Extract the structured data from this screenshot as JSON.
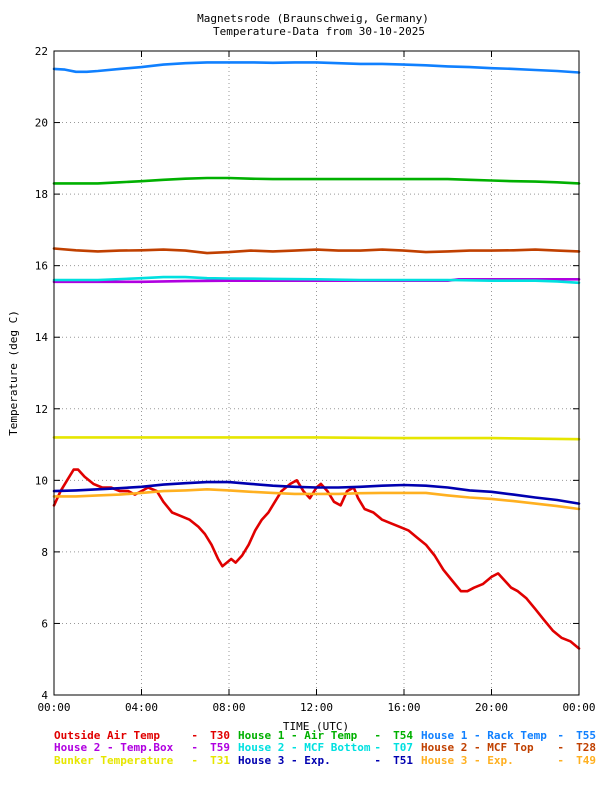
{
  "chart_data": {
    "type": "line",
    "title": "Magnetsrode (Braunschweig, Germany)",
    "subtitle": "Temperature-Data from 30-10-2025",
    "xlabel": "TIME (UTC)",
    "ylabel": "Temperature (deg C)",
    "xlim": [
      0,
      24
    ],
    "ylim": [
      4,
      22
    ],
    "x_ticks": [
      "00:00",
      "04:00",
      "08:00",
      "12:00",
      "16:00",
      "20:00",
      "00:00"
    ],
    "y_ticks": [
      4,
      6,
      8,
      10,
      12,
      14,
      16,
      18,
      20,
      22
    ],
    "grid": true,
    "legend": "bottom",
    "series": [
      {
        "name": "Outside Air Temp",
        "code": "T30",
        "color": "#e00000",
        "x": [
          0,
          0.3,
          0.6,
          0.9,
          1.1,
          1.4,
          1.8,
          2.2,
          2.6,
          3.0,
          3.4,
          3.7,
          4.0,
          4.3,
          4.7,
          5.0,
          5.4,
          5.8,
          6.2,
          6.6,
          6.9,
          7.2,
          7.5,
          7.7,
          7.9,
          8.1,
          8.3,
          8.6,
          8.9,
          9.2,
          9.5,
          9.8,
          10.1,
          10.4,
          10.8,
          11.1,
          11.4,
          11.7,
          12.0,
          12.2,
          12.5,
          12.8,
          13.1,
          13.4,
          13.7,
          13.9,
          14.2,
          14.6,
          15.0,
          15.4,
          15.8,
          16.2,
          16.6,
          17.0,
          17.4,
          17.8,
          18.2,
          18.6,
          18.9,
          19.2,
          19.6,
          20.0,
          20.3,
          20.6,
          20.9,
          21.2,
          21.6,
          22.0,
          22.4,
          22.8,
          23.2,
          23.6,
          24.0
        ],
        "values": [
          9.3,
          9.7,
          10.0,
          10.3,
          10.3,
          10.1,
          9.9,
          9.8,
          9.8,
          9.7,
          9.7,
          9.6,
          9.7,
          9.8,
          9.7,
          9.4,
          9.1,
          9.0,
          8.9,
          8.7,
          8.5,
          8.2,
          7.8,
          7.6,
          7.7,
          7.8,
          7.7,
          7.9,
          8.2,
          8.6,
          8.9,
          9.1,
          9.4,
          9.7,
          9.9,
          10.0,
          9.7,
          9.5,
          9.8,
          9.9,
          9.7,
          9.4,
          9.3,
          9.7,
          9.8,
          9.5,
          9.2,
          9.1,
          8.9,
          8.8,
          8.7,
          8.6,
          8.4,
          8.2,
          7.9,
          7.5,
          7.2,
          6.9,
          6.9,
          7.0,
          7.1,
          7.3,
          7.4,
          7.2,
          7.0,
          6.9,
          6.7,
          6.4,
          6.1,
          5.8,
          5.6,
          5.5,
          5.3
        ]
      },
      {
        "name": "House 2 - Temp.Box",
        "code": "T59",
        "color": "#b000e0",
        "x": [
          0,
          2,
          4,
          6,
          8,
          10,
          12,
          14,
          16,
          18,
          18.5,
          20,
          22,
          24
        ],
        "values": [
          15.55,
          15.55,
          15.55,
          15.57,
          15.58,
          15.58,
          15.58,
          15.58,
          15.58,
          15.58,
          15.62,
          15.62,
          15.62,
          15.62
        ]
      },
      {
        "name": "Bunker Temperature",
        "code": "T31",
        "color": "#e6e600",
        "x": [
          0,
          4,
          8,
          12,
          16,
          20,
          24
        ],
        "values": [
          11.2,
          11.2,
          11.2,
          11.2,
          11.18,
          11.18,
          11.15
        ]
      },
      {
        "name": "House 1 - Air  Temp",
        "code": "T54",
        "color": "#00b000",
        "x": [
          0,
          1,
          2,
          3,
          4,
          5,
          6,
          7,
          8,
          9,
          10,
          11,
          12,
          13,
          14,
          15,
          16,
          17,
          18,
          19,
          20,
          21,
          22,
          23,
          24
        ],
        "values": [
          18.3,
          18.3,
          18.3,
          18.33,
          18.36,
          18.4,
          18.43,
          18.45,
          18.45,
          18.43,
          18.42,
          18.42,
          18.42,
          18.42,
          18.42,
          18.42,
          18.42,
          18.42,
          18.42,
          18.4,
          18.38,
          18.36,
          18.35,
          18.33,
          18.3
        ]
      },
      {
        "name": "House 2 - MCF Bottom",
        "code": "T07",
        "color": "#00e0e0",
        "x": [
          0,
          2,
          4,
          5,
          6,
          7,
          8,
          10,
          12,
          14,
          16,
          18,
          20,
          22,
          23,
          24
        ],
        "values": [
          15.6,
          15.6,
          15.65,
          15.68,
          15.68,
          15.65,
          15.64,
          15.63,
          15.62,
          15.6,
          15.6,
          15.6,
          15.58,
          15.58,
          15.56,
          15.52
        ]
      },
      {
        "name": "House 3 - Exp.",
        "code": "T51",
        "color": "#0000b0",
        "x": [
          0,
          1,
          2,
          3,
          4,
          5,
          6,
          7,
          8,
          9,
          10,
          11,
          12,
          13,
          14,
          15,
          16,
          17,
          18,
          19,
          20,
          21,
          22,
          23,
          24
        ],
        "values": [
          9.7,
          9.72,
          9.75,
          9.78,
          9.82,
          9.88,
          9.92,
          9.95,
          9.95,
          9.9,
          9.85,
          9.82,
          9.8,
          9.8,
          9.82,
          9.85,
          9.87,
          9.85,
          9.8,
          9.72,
          9.68,
          9.6,
          9.52,
          9.45,
          9.35
        ]
      },
      {
        "name": "House 1 - Rack Temp",
        "code": "T55",
        "color": "#1080ff",
        "x": [
          0,
          0.5,
          1,
          1.5,
          2,
          3,
          4,
          5,
          6,
          7,
          8,
          9,
          10,
          11,
          12,
          13,
          14,
          15,
          16,
          17,
          18,
          19,
          20,
          21,
          22,
          23,
          24
        ],
        "values": [
          21.5,
          21.48,
          21.42,
          21.42,
          21.44,
          21.5,
          21.55,
          21.62,
          21.66,
          21.68,
          21.68,
          21.68,
          21.67,
          21.68,
          21.68,
          21.66,
          21.64,
          21.64,
          21.62,
          21.6,
          21.57,
          21.55,
          21.52,
          21.5,
          21.47,
          21.44,
          21.4
        ]
      },
      {
        "name": "House 2 - MCF Top",
        "code": "T28",
        "color": "#c04000",
        "x": [
          0,
          1,
          2,
          3,
          4,
          5,
          6,
          7,
          8,
          9,
          10,
          11,
          12,
          13,
          14,
          15,
          16,
          17,
          18,
          19,
          20,
          21,
          22,
          23,
          24
        ],
        "values": [
          16.48,
          16.43,
          16.4,
          16.42,
          16.43,
          16.45,
          16.42,
          16.35,
          16.38,
          16.42,
          16.4,
          16.42,
          16.45,
          16.42,
          16.42,
          16.45,
          16.42,
          16.38,
          16.4,
          16.42,
          16.42,
          16.43,
          16.45,
          16.42,
          16.4
        ]
      },
      {
        "name": "House 3 - Exp.",
        "code": "T49",
        "color": "#ffb020",
        "x": [
          0,
          1,
          2,
          3,
          4,
          5,
          6,
          7,
          8,
          9,
          10,
          11,
          12,
          13,
          14,
          15,
          16,
          17,
          18,
          19,
          20,
          21,
          22,
          23,
          24
        ],
        "values": [
          9.55,
          9.55,
          9.58,
          9.6,
          9.65,
          9.7,
          9.72,
          9.75,
          9.72,
          9.68,
          9.65,
          9.62,
          9.62,
          9.62,
          9.64,
          9.65,
          9.65,
          9.65,
          9.58,
          9.52,
          9.48,
          9.42,
          9.35,
          9.28,
          9.2
        ]
      }
    ]
  }
}
